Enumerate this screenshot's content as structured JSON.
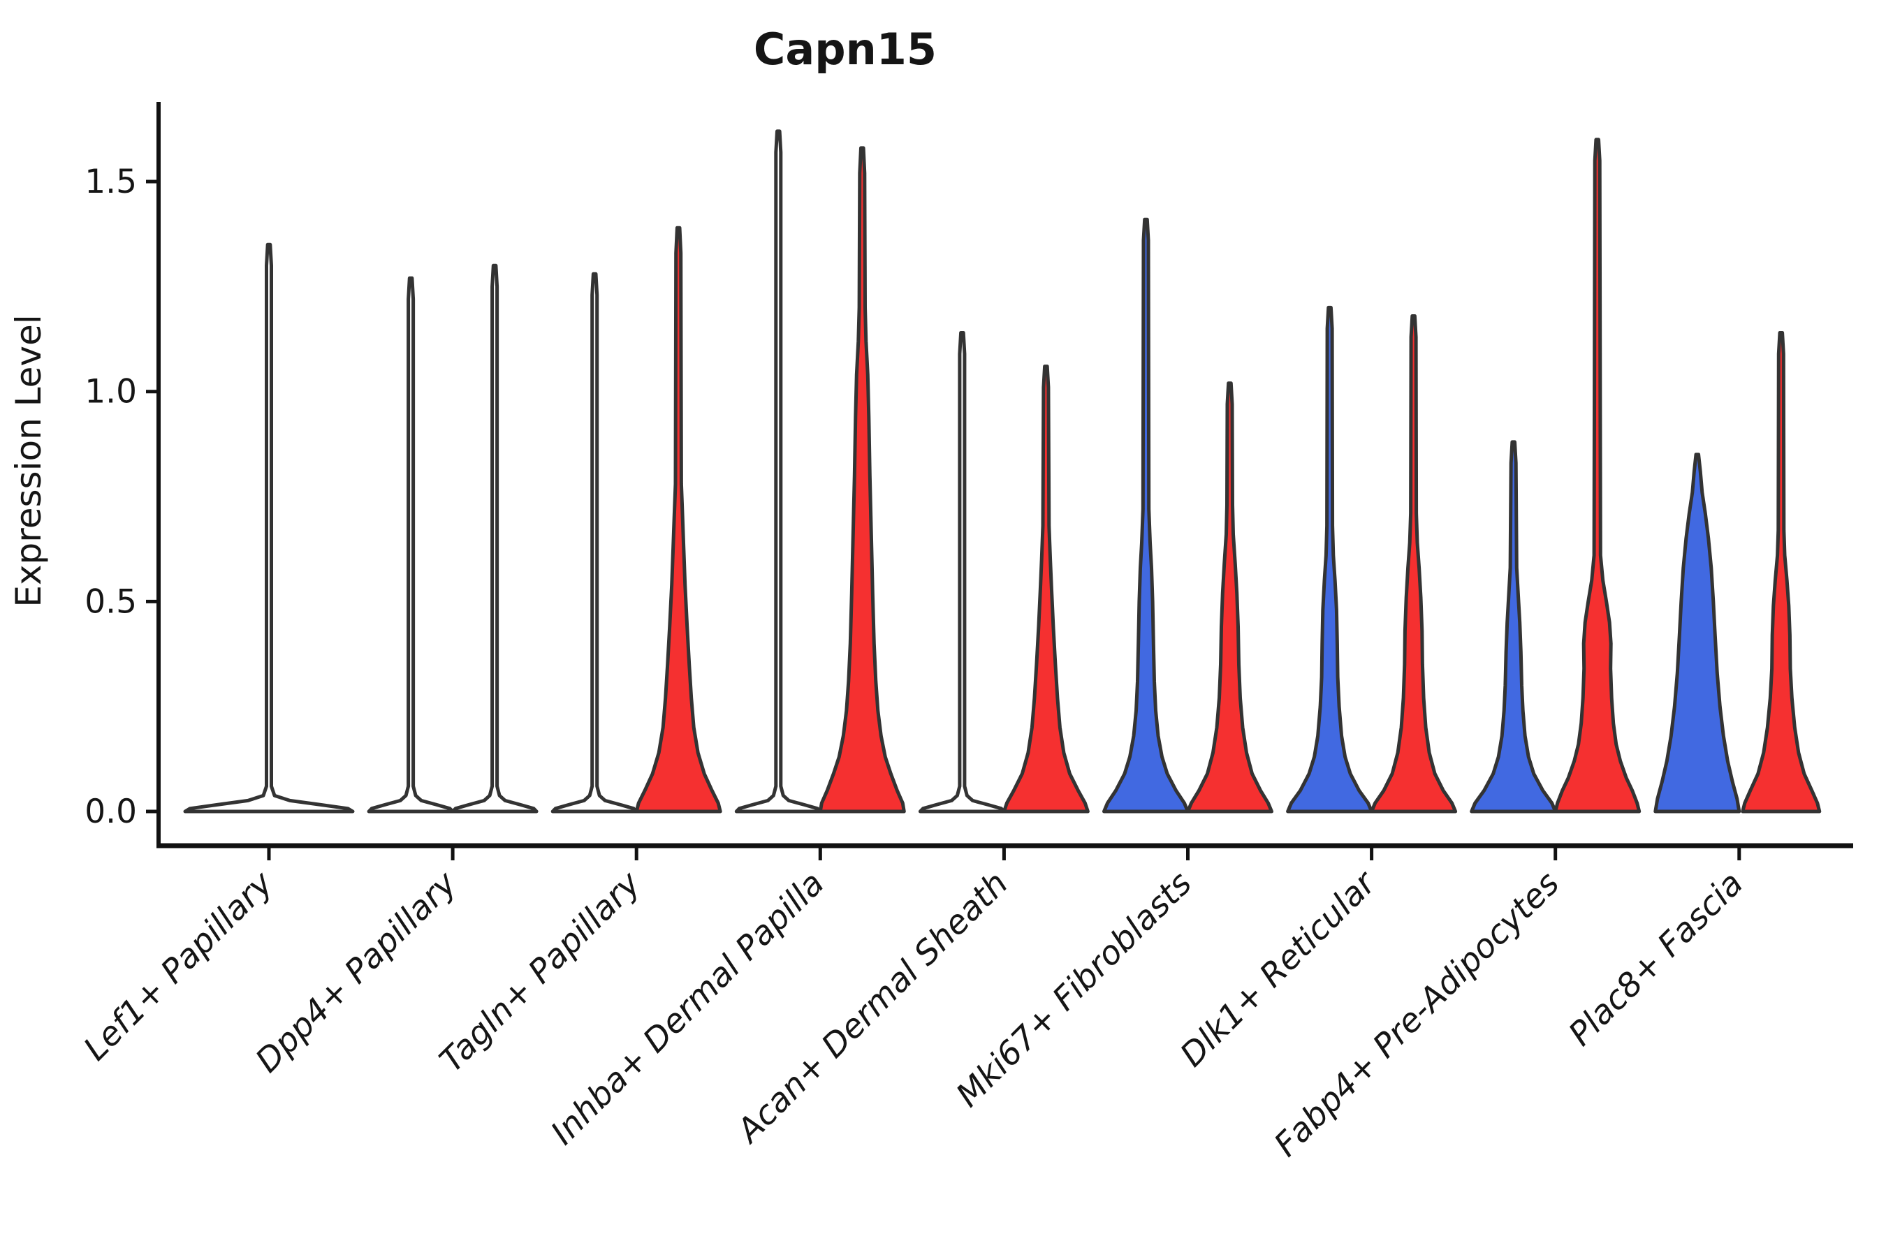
{
  "chart_data": {
    "type": "violin",
    "title": "Capn15",
    "xlabel": "",
    "ylabel": "Expression Level",
    "grid": false,
    "legend": "none",
    "yticks": [
      0.0,
      0.5,
      1.0,
      1.5
    ],
    "ytick_labels": [
      "0.0",
      "0.5",
      "1.0",
      "1.5"
    ],
    "ylim": [
      -0.08,
      1.69
    ],
    "categories": [
      "Lef1+ Papillary",
      "Dpp4+ Papillary",
      "Tagln+ Papillary",
      "Inhba+ Dermal Papilla",
      "Acan+ Dermal Sheath",
      "Mki67+ Fibroblasts",
      "Dlk1+ Reticular",
      "Fabp4+ Pre-Adipocytes",
      "Plac8+ Fascia"
    ],
    "colors": {
      "blue_fill": "#4169e1",
      "red_fill": "#f53030",
      "unfilled": "#ffffff",
      "violin_outline": "#333333",
      "axis": "#111111",
      "text": "#151515"
    },
    "violins": [
      {
        "category_index": 0,
        "category": "Lef1+ Papillary",
        "side": "center",
        "color": "unfilled",
        "max_expression": 1.35,
        "profile": [
          [
            0,
            120
          ],
          [
            0.007,
            113
          ],
          [
            0.016,
            74
          ],
          [
            0.026,
            30
          ],
          [
            0.038,
            8
          ],
          [
            0.06,
            3.5
          ],
          [
            1.3,
            3.5
          ],
          [
            1.35,
            1.8
          ]
        ]
      },
      {
        "category_index": 1,
        "category": "Dpp4+ Papillary",
        "side": "left",
        "color": "unfilled",
        "max_expression": 1.27,
        "profile": [
          [
            0,
            60
          ],
          [
            0.007,
            56
          ],
          [
            0.016,
            37
          ],
          [
            0.026,
            15
          ],
          [
            0.038,
            7
          ],
          [
            0.06,
            3.5
          ],
          [
            1.22,
            3.5
          ],
          [
            1.27,
            1.8
          ]
        ]
      },
      {
        "category_index": 1,
        "category": "Dpp4+ Papillary",
        "side": "right",
        "color": "unfilled",
        "max_expression": 1.3,
        "profile": [
          [
            0,
            60
          ],
          [
            0.007,
            56
          ],
          [
            0.016,
            37
          ],
          [
            0.026,
            15
          ],
          [
            0.038,
            7
          ],
          [
            0.06,
            3.5
          ],
          [
            1.25,
            3.5
          ],
          [
            1.3,
            1.8
          ]
        ]
      },
      {
        "category_index": 2,
        "category": "Tagln+ Papillary",
        "side": "left",
        "color": "unfilled",
        "max_expression": 1.28,
        "profile": [
          [
            0,
            60
          ],
          [
            0.007,
            56
          ],
          [
            0.016,
            37
          ],
          [
            0.026,
            15
          ],
          [
            0.038,
            7
          ],
          [
            0.06,
            3.5
          ],
          [
            1.23,
            3.5
          ],
          [
            1.28,
            1.8
          ]
        ]
      },
      {
        "category_index": 2,
        "category": "Tagln+ Papillary",
        "side": "right",
        "color": "red_fill",
        "max_expression": 1.39,
        "profile": [
          [
            0,
            60
          ],
          [
            0.02,
            57
          ],
          [
            0.05,
            48
          ],
          [
            0.09,
            37
          ],
          [
            0.14,
            28
          ],
          [
            0.2,
            22
          ],
          [
            0.27,
            18.5
          ],
          [
            0.35,
            15.5
          ],
          [
            0.44,
            12.5
          ],
          [
            0.54,
            9.5
          ],
          [
            0.63,
            7.5
          ],
          [
            0.7,
            6
          ],
          [
            0.78,
            4.2
          ],
          [
            1.33,
            3.5
          ],
          [
            1.39,
            1.8
          ]
        ]
      },
      {
        "category_index": 3,
        "category": "Inhba+ Dermal Papilla",
        "side": "left",
        "color": "unfilled",
        "max_expression": 1.62,
        "profile": [
          [
            0,
            60
          ],
          [
            0.007,
            56
          ],
          [
            0.016,
            37
          ],
          [
            0.026,
            15
          ],
          [
            0.038,
            7
          ],
          [
            0.06,
            3.5
          ],
          [
            1.57,
            3.5
          ],
          [
            1.62,
            1.8
          ]
        ]
      },
      {
        "category_index": 3,
        "category": "Inhba+ Dermal Papilla",
        "side": "right",
        "color": "red_fill",
        "max_expression": 1.58,
        "profile": [
          [
            0,
            60
          ],
          [
            0.02,
            58
          ],
          [
            0.05,
            50
          ],
          [
            0.09,
            41
          ],
          [
            0.13,
            33
          ],
          [
            0.18,
            27
          ],
          [
            0.24,
            22.5
          ],
          [
            0.31,
            19.5
          ],
          [
            0.4,
            17
          ],
          [
            0.52,
            15
          ],
          [
            0.66,
            13
          ],
          [
            0.8,
            11
          ],
          [
            0.94,
            9.5
          ],
          [
            1.04,
            8
          ],
          [
            1.12,
            5.5
          ],
          [
            1.2,
            4.2
          ],
          [
            1.52,
            3.5
          ],
          [
            1.58,
            1.8
          ]
        ]
      },
      {
        "category_index": 4,
        "category": "Acan+ Dermal Sheath",
        "side": "left",
        "color": "unfilled",
        "max_expression": 1.14,
        "profile": [
          [
            0,
            60
          ],
          [
            0.007,
            56
          ],
          [
            0.016,
            37
          ],
          [
            0.026,
            15
          ],
          [
            0.038,
            7
          ],
          [
            0.06,
            3.5
          ],
          [
            1.09,
            3.5
          ],
          [
            1.14,
            1.8
          ]
        ]
      },
      {
        "category_index": 4,
        "category": "Acan+ Dermal Sheath",
        "side": "right",
        "color": "red_fill",
        "max_expression": 1.06,
        "profile": [
          [
            0,
            60
          ],
          [
            0.02,
            56
          ],
          [
            0.05,
            46
          ],
          [
            0.09,
            34
          ],
          [
            0.14,
            25.5
          ],
          [
            0.2,
            20
          ],
          [
            0.27,
            16.5
          ],
          [
            0.35,
            13.5
          ],
          [
            0.44,
            10.5
          ],
          [
            0.53,
            8
          ],
          [
            0.6,
            6.2
          ],
          [
            0.68,
            4.4
          ],
          [
            1.01,
            3.5
          ],
          [
            1.06,
            1.8
          ]
        ]
      },
      {
        "category_index": 5,
        "category": "Mki67+ Fibroblasts",
        "side": "left",
        "color": "blue_fill",
        "max_expression": 1.41,
        "profile": [
          [
            0,
            60
          ],
          [
            0.02,
            55
          ],
          [
            0.05,
            43
          ],
          [
            0.09,
            30.5
          ],
          [
            0.13,
            23
          ],
          [
            0.18,
            17.5
          ],
          [
            0.24,
            14
          ],
          [
            0.31,
            12
          ],
          [
            0.4,
            10.8
          ],
          [
            0.5,
            9.6
          ],
          [
            0.58,
            8
          ],
          [
            0.64,
            6
          ],
          [
            0.72,
            4.2
          ],
          [
            1.36,
            3.5
          ],
          [
            1.41,
            1.8
          ]
        ]
      },
      {
        "category_index": 5,
        "category": "Mki67+ Fibroblasts",
        "side": "right",
        "color": "red_fill",
        "max_expression": 1.02,
        "profile": [
          [
            0,
            60
          ],
          [
            0.02,
            55
          ],
          [
            0.05,
            44
          ],
          [
            0.09,
            32
          ],
          [
            0.14,
            24
          ],
          [
            0.2,
            18.5
          ],
          [
            0.27,
            15
          ],
          [
            0.35,
            13
          ],
          [
            0.44,
            12
          ],
          [
            0.52,
            10.2
          ],
          [
            0.59,
            7.8
          ],
          [
            0.66,
            5
          ],
          [
            0.73,
            4
          ],
          [
            0.97,
            3.5
          ],
          [
            1.02,
            1.8
          ]
        ]
      },
      {
        "category_index": 6,
        "category": "Dlk1+ Reticular",
        "side": "left",
        "color": "blue_fill",
        "max_expression": 1.2,
        "profile": [
          [
            0,
            60
          ],
          [
            0.02,
            55
          ],
          [
            0.05,
            42
          ],
          [
            0.09,
            29.5
          ],
          [
            0.13,
            22
          ],
          [
            0.18,
            17
          ],
          [
            0.25,
            13.5
          ],
          [
            0.32,
            11.5
          ],
          [
            0.4,
            10.8
          ],
          [
            0.48,
            9.8
          ],
          [
            0.55,
            7.6
          ],
          [
            0.61,
            5.2
          ],
          [
            0.68,
            4
          ],
          [
            1.15,
            3.5
          ],
          [
            1.2,
            1.8
          ]
        ]
      },
      {
        "category_index": 6,
        "category": "Dlk1+ Reticular",
        "side": "right",
        "color": "red_fill",
        "max_expression": 1.18,
        "profile": [
          [
            0,
            60
          ],
          [
            0.02,
            55
          ],
          [
            0.05,
            42.5
          ],
          [
            0.09,
            30.5
          ],
          [
            0.14,
            22.5
          ],
          [
            0.2,
            17.5
          ],
          [
            0.27,
            14.5
          ],
          [
            0.35,
            12.8
          ],
          [
            0.43,
            12.2
          ],
          [
            0.51,
            10.4
          ],
          [
            0.58,
            8
          ],
          [
            0.64,
            5.4
          ],
          [
            0.71,
            4
          ],
          [
            1.13,
            3.5
          ],
          [
            1.18,
            1.8
          ]
        ]
      },
      {
        "category_index": 7,
        "category": "Fabp4+ Pre-Adipocytes",
        "side": "left",
        "color": "blue_fill",
        "max_expression": 0.88,
        "profile": [
          [
            0,
            60
          ],
          [
            0.02,
            55
          ],
          [
            0.05,
            42
          ],
          [
            0.09,
            29
          ],
          [
            0.13,
            21.5
          ],
          [
            0.18,
            16.5
          ],
          [
            0.24,
            13.5
          ],
          [
            0.3,
            11.8
          ],
          [
            0.38,
            10.6
          ],
          [
            0.45,
            9
          ],
          [
            0.52,
            6.6
          ],
          [
            0.58,
            4.6
          ],
          [
            0.83,
            3.5
          ],
          [
            0.88,
            1.8
          ]
        ]
      },
      {
        "category_index": 7,
        "category": "Fabp4+ Pre-Adipocytes",
        "side": "right",
        "color": "red_fill",
        "max_expression": 1.6,
        "profile": [
          [
            0,
            60
          ],
          [
            0.02,
            57
          ],
          [
            0.05,
            50
          ],
          [
            0.08,
            41.5
          ],
          [
            0.12,
            33
          ],
          [
            0.16,
            27
          ],
          [
            0.21,
            23
          ],
          [
            0.27,
            20.5
          ],
          [
            0.34,
            19
          ],
          [
            0.4,
            19.5
          ],
          [
            0.45,
            17.5
          ],
          [
            0.5,
            13
          ],
          [
            0.55,
            8
          ],
          [
            0.61,
            4.6
          ],
          [
            1.55,
            3.5
          ],
          [
            1.6,
            1.8
          ]
        ]
      },
      {
        "category_index": 8,
        "category": "Plac8+ Fascia",
        "side": "left",
        "color": "blue_fill",
        "max_expression": 0.85,
        "profile": [
          [
            0,
            60
          ],
          [
            0.03,
            57
          ],
          [
            0.07,
            50.5
          ],
          [
            0.12,
            43.5
          ],
          [
            0.18,
            37.5
          ],
          [
            0.25,
            32.5
          ],
          [
            0.33,
            28.5
          ],
          [
            0.42,
            25.5
          ],
          [
            0.5,
            23
          ],
          [
            0.58,
            20
          ],
          [
            0.65,
            16
          ],
          [
            0.71,
            11.5
          ],
          [
            0.76,
            7
          ],
          [
            0.81,
            4.4
          ],
          [
            0.85,
            1.8
          ]
        ]
      },
      {
        "category_index": 8,
        "category": "Plac8+ Fascia",
        "side": "right",
        "color": "red_fill",
        "max_expression": 1.14,
        "profile": [
          [
            0,
            55
          ],
          [
            0.02,
            52
          ],
          [
            0.05,
            44
          ],
          [
            0.09,
            33
          ],
          [
            0.14,
            25
          ],
          [
            0.2,
            19.5
          ],
          [
            0.27,
            15.5
          ],
          [
            0.34,
            13.2
          ],
          [
            0.42,
            12.6
          ],
          [
            0.49,
            11
          ],
          [
            0.55,
            8.4
          ],
          [
            0.61,
            5.2
          ],
          [
            0.67,
            4
          ],
          [
            1.09,
            3.5
          ],
          [
            1.14,
            1.8
          ]
        ]
      }
    ]
  }
}
